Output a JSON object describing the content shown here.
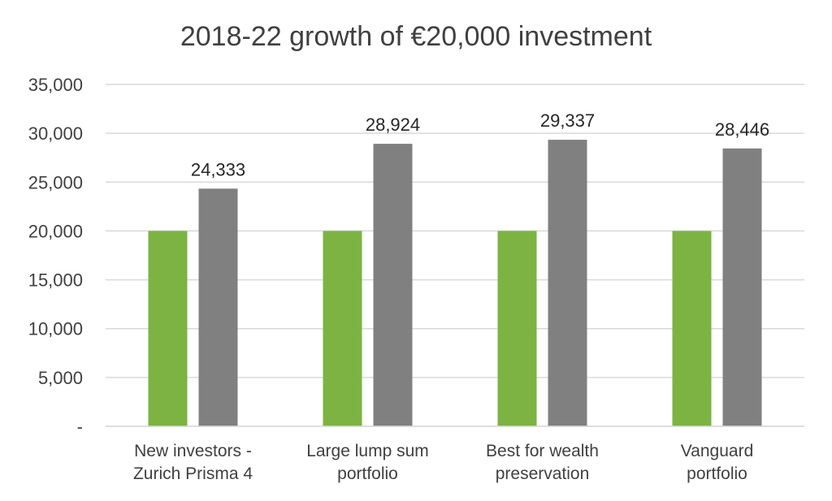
{
  "chart_data": {
    "type": "bar",
    "title": "2018-22 growth of €20,000 investment",
    "categories": [
      [
        "New investors -",
        "Zurich Prisma 4"
      ],
      [
        "Large lump sum",
        "portfolio"
      ],
      [
        "Best for wealth",
        "preservation"
      ],
      [
        "Vanguard",
        "portfolio"
      ]
    ],
    "series": [
      {
        "values": [
          20000,
          20000,
          20000,
          20000
        ],
        "color": "#7cb342",
        "show_labels": false
      },
      {
        "values": [
          24333,
          28924,
          29337,
          28446
        ],
        "color": "#808080",
        "show_labels": true,
        "labels": [
          "24,333",
          "28,924",
          "29,337",
          "28,446"
        ]
      }
    ],
    "ylim": [
      0,
      35000
    ],
    "yticks": [
      0,
      5000,
      10000,
      15000,
      20000,
      25000,
      30000,
      35000
    ],
    "ytick_labels": [
      "-",
      "5,000",
      "10,000",
      "15,000",
      "20,000",
      "25,000",
      "30,000",
      "35,000"
    ],
    "grid": true,
    "gridline_color": "#d9d9d9",
    "legend": "none"
  }
}
